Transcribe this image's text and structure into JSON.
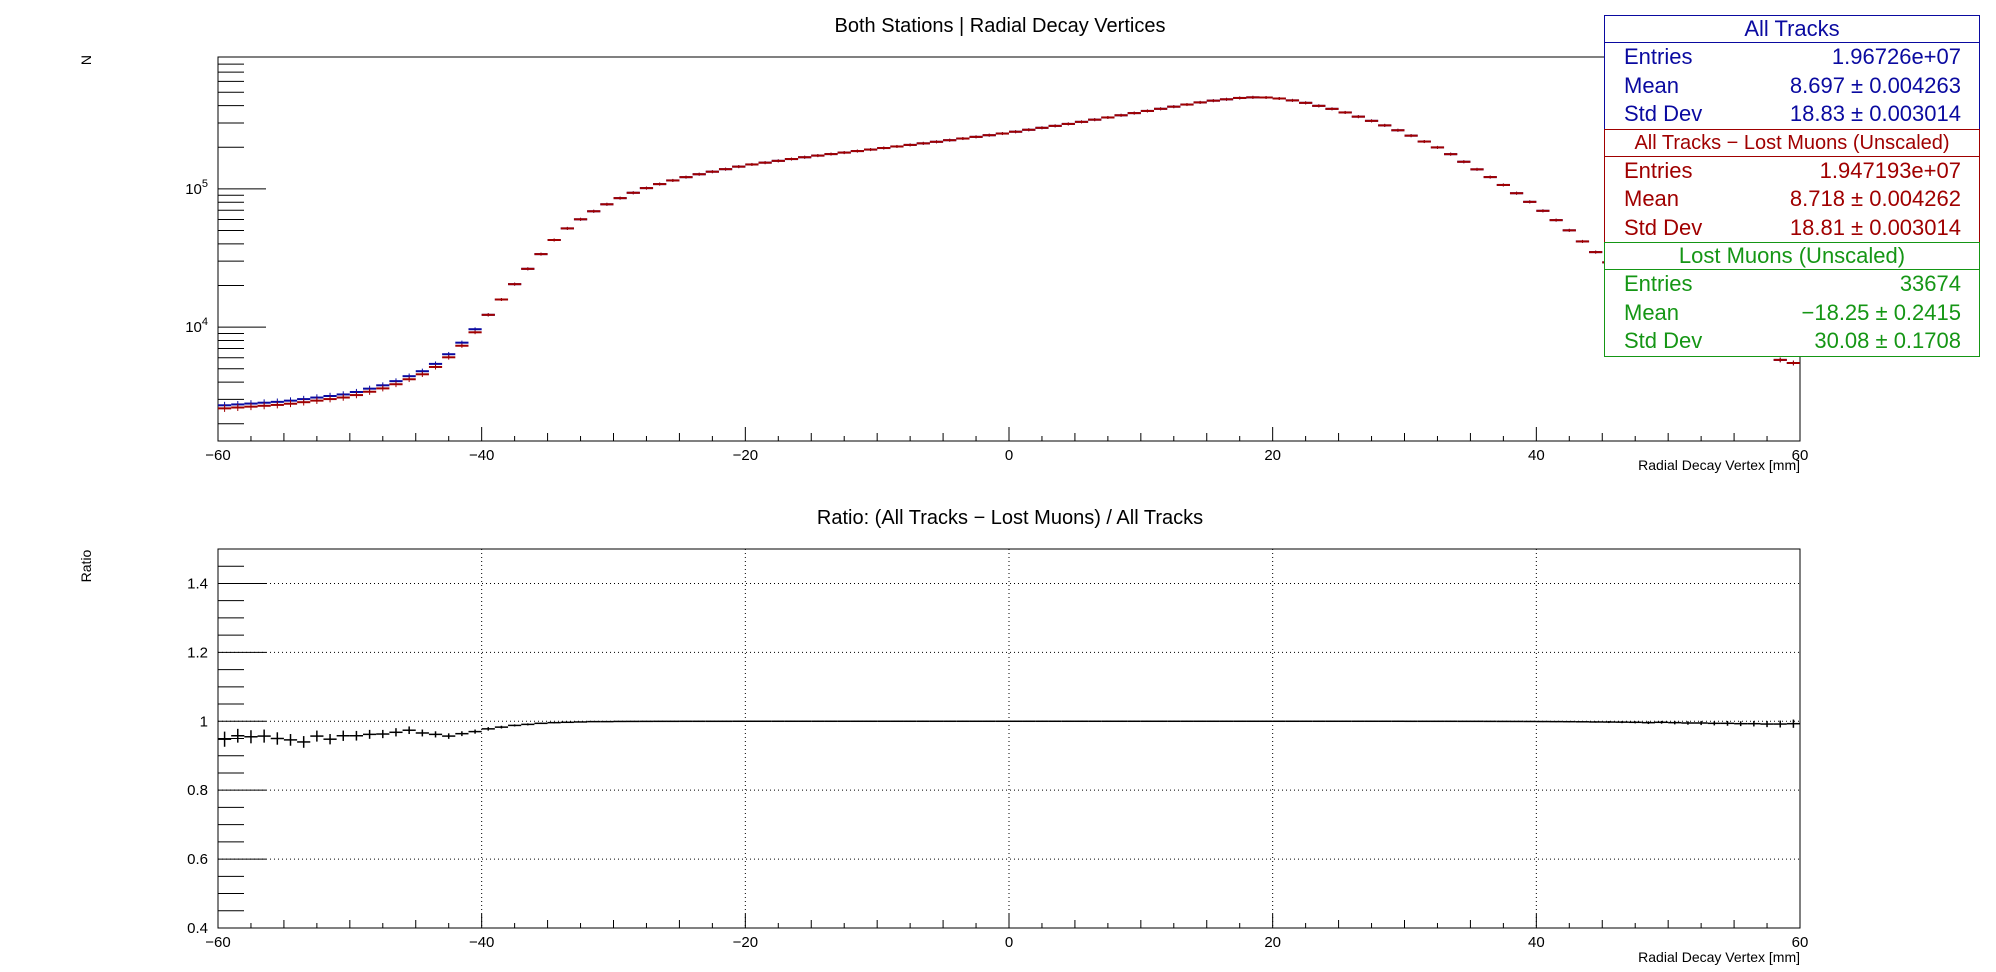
{
  "colors": {
    "all_tracks": "#0a0aa0",
    "all_minus_lost": "#a00000",
    "lost_muons": "#159615",
    "ratio": "#000000",
    "grid": "#000000"
  },
  "stats": [
    {
      "title": "All Tracks",
      "color": "#0a0aa0",
      "rows": [
        {
          "label": "Entries",
          "value": "1.96726e+07"
        },
        {
          "label": "Mean",
          "value": "8.697 ± 0.004263"
        },
        {
          "label": "Std Dev",
          "value": "18.83 ± 0.003014"
        }
      ]
    },
    {
      "title": "All Tracks − Lost Muons (Unscaled)",
      "color": "#a00000",
      "rows": [
        {
          "label": "Entries",
          "value": "1.947193e+07"
        },
        {
          "label": "Mean",
          "value": "8.718 ± 0.004262"
        },
        {
          "label": "Std Dev",
          "value": "18.81 ± 0.003014"
        }
      ]
    },
    {
      "title": "Lost Muons (Unscaled)",
      "color": "#159615",
      "rows": [
        {
          "label": "Entries",
          "value": "33674"
        },
        {
          "label": "Mean",
          "value": "−18.25 ± 0.2415"
        },
        {
          "label": "Std Dev",
          "value": "30.08 ± 0.1708"
        }
      ]
    }
  ],
  "chart_data": [
    {
      "type": "histogram",
      "title": "Both Stations | Radial Decay Vertices",
      "xlabel": "Radial Decay Vertex [mm]",
      "ylabel": "N",
      "xlim": [
        -60,
        60
      ],
      "ylim": [
        1500,
        900000
      ],
      "log_y": true,
      "grid": false,
      "bin_width": 1,
      "x_ticks": [
        -60,
        -40,
        -20,
        0,
        20,
        40,
        60
      ],
      "x_tick_labels": [
        "−60",
        "−40",
        "−20",
        "0",
        "20",
        "40",
        "60"
      ],
      "y_tick_labels": [
        {
          "value": 100000,
          "base": "10",
          "exp": "5"
        },
        {
          "value": 10000,
          "base": "10",
          "exp": "4"
        }
      ],
      "knots": [
        [
          -60,
          2700
        ],
        [
          -55,
          2900
        ],
        [
          -50,
          3300
        ],
        [
          -47,
          3900
        ],
        [
          -44,
          5000
        ],
        [
          -42,
          6900
        ],
        [
          -40,
          10800
        ],
        [
          -38,
          18000
        ],
        [
          -36,
          30000
        ],
        [
          -34,
          48000
        ],
        [
          -32,
          65000
        ],
        [
          -30,
          82000
        ],
        [
          -28,
          98000
        ],
        [
          -26,
          112000
        ],
        [
          -24,
          125000
        ],
        [
          -20,
          148000
        ],
        [
          -15,
          172000
        ],
        [
          -10,
          195000
        ],
        [
          -5,
          222000
        ],
        [
          0,
          255000
        ],
        [
          5,
          300000
        ],
        [
          10,
          360000
        ],
        [
          15,
          430000
        ],
        [
          18,
          460000
        ],
        [
          20,
          458000
        ],
        [
          22,
          430000
        ],
        [
          25,
          370000
        ],
        [
          28,
          300000
        ],
        [
          30,
          255000
        ],
        [
          33,
          190000
        ],
        [
          36,
          130000
        ],
        [
          38,
          100000
        ],
        [
          40,
          75000
        ],
        [
          42,
          55000
        ],
        [
          44,
          38000
        ],
        [
          46,
          27000
        ],
        [
          48,
          20000
        ],
        [
          50,
          15000
        ],
        [
          53,
          10500
        ],
        [
          56,
          7500
        ],
        [
          59,
          5500
        ]
      ],
      "series": [
        {
          "name": "All Tracks",
          "color": "#0a0aa0",
          "scale_low": 1.0
        },
        {
          "name": "All Tracks − Lost Muons (Unscaled)",
          "color": "#a00000",
          "scale_low": 0.95
        }
      ]
    },
    {
      "type": "scatter",
      "title": "Ratio: (All Tracks  − Lost Muons) / All Tracks",
      "xlabel": "Radial Decay Vertex [mm]",
      "ylabel": "Ratio",
      "xlim": [
        -60,
        60
      ],
      "ylim": [
        0.4,
        1.5
      ],
      "grid": true,
      "x_ticks": [
        -60,
        -40,
        -20,
        0,
        20,
        40,
        60
      ],
      "x_tick_labels": [
        "−60",
        "−40",
        "−20",
        "0",
        "20",
        "40",
        "60"
      ],
      "y_ticks": [
        0.4,
        0.6,
        0.8,
        1.0,
        1.2,
        1.4
      ],
      "y_tick_labels": [
        "0.4",
        "0.6",
        "0.8",
        "1",
        "1.2",
        "1.4"
      ],
      "x": [
        -59.5,
        -58.5,
        -57.5,
        -56.5,
        -55.5,
        -54.5,
        -53.5,
        -52.5,
        -51.5,
        -50.5,
        -49.5,
        -48.5,
        -47.5,
        -46.5,
        -45.5,
        -44.5,
        -43.5,
        -42.5,
        -41.5,
        -40.5,
        -39.5,
        -38.5,
        -37.5,
        -36.5,
        -35.5,
        -34.5,
        -33.5,
        -32.5,
        -31.5,
        -30.5,
        -29.5,
        -28.5,
        -27.5,
        -26.5,
        -25.5,
        -24.5,
        -23.5,
        -22.5,
        -21.5,
        -20.5,
        -19.5,
        -18.5,
        -17.5,
        -16.5,
        -15.5,
        -14.5,
        -13.5,
        -12.5,
        -11.5,
        -10.5,
        -9.5,
        -8.5,
        -7.5,
        -6.5,
        -5.5,
        -4.5,
        -3.5,
        -2.5,
        -1.5,
        -0.5,
        0.5,
        1.5,
        2.5,
        3.5,
        4.5,
        5.5,
        6.5,
        7.5,
        8.5,
        9.5,
        10.5,
        11.5,
        12.5,
        13.5,
        14.5,
        15.5,
        16.5,
        17.5,
        18.5,
        19.5,
        20.5,
        21.5,
        22.5,
        23.5,
        24.5,
        25.5,
        26.5,
        27.5,
        28.5,
        29.5,
        30.5,
        31.5,
        32.5,
        33.5,
        34.5,
        35.5,
        36.5,
        37.5,
        38.5,
        39.5,
        40.5,
        41.5,
        42.5,
        43.5,
        44.5,
        45.5,
        46.5,
        47.5,
        48.5,
        49.5,
        50.5,
        51.5,
        52.5,
        53.5,
        54.5,
        55.5,
        56.5,
        57.5,
        58.5,
        59.5
      ],
      "values": [
        0.948,
        0.958,
        0.955,
        0.957,
        0.95,
        0.946,
        0.94,
        0.957,
        0.948,
        0.958,
        0.958,
        0.962,
        0.963,
        0.968,
        0.974,
        0.966,
        0.962,
        0.957,
        0.964,
        0.97,
        0.978,
        0.983,
        0.988,
        0.991,
        0.994,
        0.996,
        0.997,
        0.998,
        0.999,
        0.999,
        0.9995,
        0.9996,
        0.9997,
        0.9998,
        0.9998,
        0.9999,
        0.9999,
        0.9999,
        0.9999,
        1.0,
        1.0,
        1.0,
        1.0,
        1.0,
        1.0,
        1.0,
        1.0,
        1.0,
        1.0,
        1.0,
        1.0,
        1.0,
        1.0,
        1.0,
        1.0,
        1.0,
        1.0,
        1.0,
        1.0,
        1.0,
        1.0,
        1.0,
        1.0,
        1.0,
        1.0,
        1.0,
        1.0,
        1.0,
        1.0,
        1.0,
        1.0,
        1.0,
        1.0,
        1.0,
        1.0,
        1.0,
        1.0,
        1.0,
        1.0,
        1.0,
        1.0,
        1.0,
        1.0,
        1.0,
        1.0,
        1.0,
        1.0,
        1.0,
        1.0,
        1.0,
        0.9999,
        0.9999,
        0.9999,
        0.9999,
        0.9998,
        0.9998,
        0.9997,
        0.9996,
        0.9995,
        0.9994,
        0.9992,
        0.999,
        0.9988,
        0.9985,
        0.998,
        0.9978,
        0.9975,
        0.997,
        0.996,
        0.997,
        0.996,
        0.995,
        0.995,
        0.994,
        0.994,
        0.993,
        0.993,
        0.992,
        0.992,
        0.993
      ],
      "errors": [
        0.022,
        0.02,
        0.019,
        0.019,
        0.018,
        0.017,
        0.017,
        0.016,
        0.015,
        0.015,
        0.014,
        0.013,
        0.012,
        0.012,
        0.011,
        0.01,
        0.009,
        0.008,
        0.007,
        0.006,
        0.005,
        0.004,
        0.003,
        0.003,
        0.002,
        0.002,
        0.0015,
        0.0012,
        0.001,
        0.001,
        0.001,
        0.001,
        0.001,
        0.001,
        0.001,
        0.001,
        0.001,
        0.001,
        0.001,
        0.001,
        0.001,
        0.001,
        0.001,
        0.001,
        0.001,
        0.001,
        0.001,
        0.001,
        0.001,
        0.001,
        0.001,
        0.001,
        0.001,
        0.001,
        0.001,
        0.001,
        0.001,
        0.001,
        0.001,
        0.001,
        0.001,
        0.001,
        0.001,
        0.001,
        0.001,
        0.001,
        0.001,
        0.001,
        0.001,
        0.001,
        0.001,
        0.001,
        0.001,
        0.001,
        0.001,
        0.001,
        0.001,
        0.001,
        0.001,
        0.001,
        0.001,
        0.001,
        0.001,
        0.001,
        0.001,
        0.001,
        0.001,
        0.001,
        0.001,
        0.001,
        0.001,
        0.001,
        0.001,
        0.001,
        0.001,
        0.001,
        0.001,
        0.001,
        0.001,
        0.001,
        0.0015,
        0.0015,
        0.002,
        0.002,
        0.002,
        0.003,
        0.003,
        0.003,
        0.004,
        0.004,
        0.005,
        0.005,
        0.006,
        0.006,
        0.007,
        0.007,
        0.008,
        0.009,
        0.01,
        0.012
      ]
    }
  ]
}
